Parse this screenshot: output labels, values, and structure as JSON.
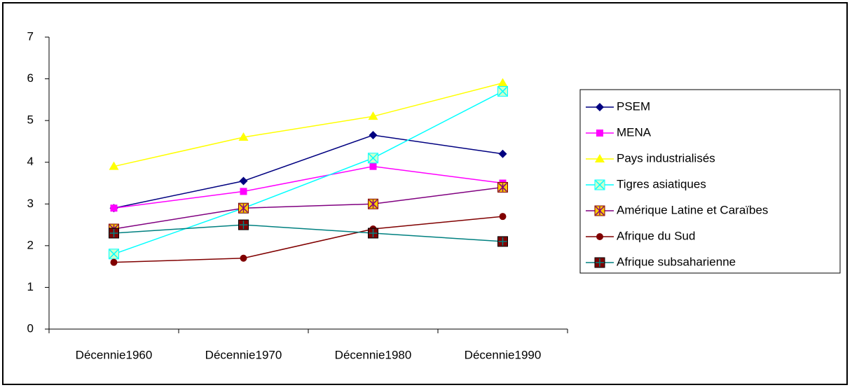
{
  "chart_data": {
    "type": "line",
    "categories": [
      "Décennie1960",
      "Décennie1970",
      "Décennie1980",
      "Décennie1990"
    ],
    "ylim": [
      0,
      7
    ],
    "yticks": [
      0,
      1,
      2,
      3,
      4,
      5,
      6,
      7
    ],
    "grid": false,
    "legend": "right",
    "series": [
      {
        "name": "PSEM",
        "color": "#000080",
        "marker": "diamond",
        "values": [
          2.9,
          3.55,
          4.65,
          4.2
        ]
      },
      {
        "name": "MENA",
        "color": "#ff00ff",
        "marker": "square",
        "values": [
          2.9,
          3.3,
          3.9,
          3.5
        ]
      },
      {
        "name": "Pays industrialisés",
        "color": "#ffff00",
        "marker": "triangle",
        "values": [
          3.9,
          4.6,
          5.1,
          5.9
        ]
      },
      {
        "name": "Tigres asiatiques",
        "color": "#00ffff",
        "marker": "square-x",
        "values": [
          1.8,
          2.9,
          4.1,
          5.7
        ]
      },
      {
        "name": "Amérique Latine et Caraïbes",
        "color": "#800080",
        "marker": "square-star",
        "values": [
          2.4,
          2.9,
          3.0,
          3.4
        ]
      },
      {
        "name": "Afrique du Sud",
        "color": "#800000",
        "marker": "circle",
        "values": [
          1.6,
          1.7,
          2.4,
          2.7
        ]
      },
      {
        "name": "Afrique subsaharienne",
        "color": "#008080",
        "marker": "square-plus",
        "values": [
          2.3,
          2.5,
          2.3,
          2.1
        ]
      }
    ]
  }
}
